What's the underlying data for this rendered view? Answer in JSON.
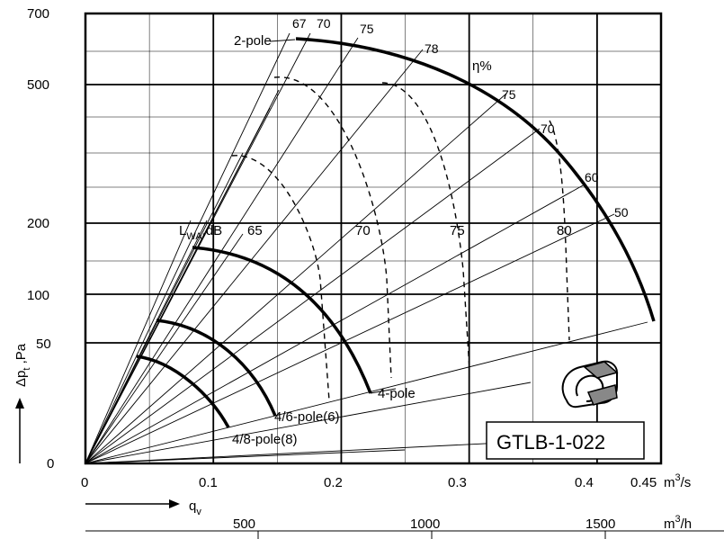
{
  "chart_data": {
    "type": "line",
    "title": "",
    "model_label": "GTLB-1-022",
    "x_axis": {
      "label": "q",
      "label_sub": "v",
      "unit_prefix": "m",
      "unit_sup": "3",
      "unit_suffix": "/s",
      "ticks": [
        0,
        0.1,
        0.2,
        0.3,
        0.4
      ],
      "tick_labels": [
        "0",
        "0.1",
        "0.2",
        "0.3",
        "0.4"
      ],
      "end_label": "0.45",
      "range": [
        0,
        0.45
      ]
    },
    "x2_axis": {
      "unit_prefix": "m",
      "unit_sup": "3",
      "unit_suffix": "/h",
      "ticks": [
        500,
        1000,
        1500
      ],
      "tick_labels": [
        "500",
        "1000",
        "1500"
      ]
    },
    "y_axis": {
      "label_prefix": "Δp",
      "label_sub": "t",
      "label_suffix": " ,Pa",
      "scale": "nonlinear",
      "ticks": [
        0,
        50,
        100,
        200,
        500,
        700
      ],
      "tick_labels": [
        "0",
        "50",
        "100",
        "200",
        "500",
        "700"
      ],
      "range": [
        0,
        700
      ]
    },
    "grid": true,
    "series": [
      {
        "name": "2-pole",
        "x": [
          0.167,
          0.2,
          0.24,
          0.28,
          0.32,
          0.36,
          0.4,
          0.43,
          0.45
        ],
        "y": [
          620,
          610,
          560,
          450,
          330,
          220,
          130,
          80,
          58
        ]
      },
      {
        "name": "4-pole",
        "x": [
          0.085,
          0.12,
          0.16,
          0.19,
          0.21,
          0.23
        ],
        "y": [
          160,
          150,
          115,
          70,
          40,
          15
        ]
      },
      {
        "name": "4/6-pole(6)",
        "x": [
          0.058,
          0.09,
          0.12,
          0.14,
          0.155
        ],
        "y": [
          70,
          64,
          45,
          22,
          0
        ]
      },
      {
        "name": "4/8-pole(8)",
        "x": [
          0.043,
          0.07,
          0.095,
          0.115
        ],
        "y": [
          45,
          40,
          20,
          -8
        ]
      }
    ],
    "efficiency_label": "η%",
    "efficiency_lines": [
      "67",
      "70",
      "75",
      "78",
      "75",
      "70",
      "60",
      "50"
    ],
    "sound_label_prefix": "L",
    "sound_label_sub": "WA",
    "sound_label_suffix": ",dB",
    "sound_levels": [
      "65",
      "70",
      "75",
      "80"
    ]
  }
}
